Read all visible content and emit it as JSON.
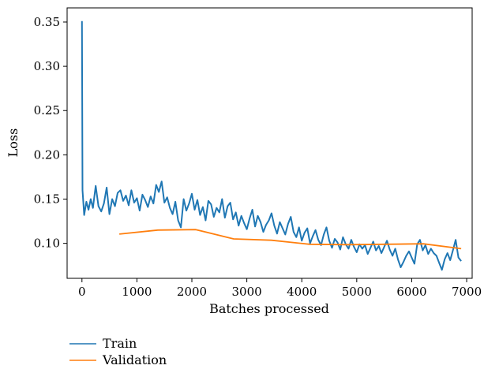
{
  "chart_data": {
    "type": "line",
    "title": "",
    "xlabel": "Batches processed",
    "ylabel": "Loss",
    "xlim": [
      -270,
      7100
    ],
    "ylim": [
      0.0605,
      0.366
    ],
    "x_ticks": [
      0,
      1000,
      2000,
      3000,
      4000,
      5000,
      6000,
      7000
    ],
    "y_ticks": [
      0.1,
      0.15,
      0.2,
      0.25,
      0.3,
      0.35
    ],
    "y_tick_labels": [
      "0.10",
      "0.15",
      "0.20",
      "0.25",
      "0.30",
      "0.35"
    ],
    "grid": false,
    "legend_position": "below-left",
    "series": [
      {
        "name": "Train",
        "color": "#1f77b4",
        "x": [
          0,
          10,
          40,
          80,
          120,
          160,
          200,
          250,
          300,
          350,
          400,
          450,
          500,
          550,
          600,
          650,
          700,
          750,
          800,
          850,
          900,
          950,
          1000,
          1050,
          1100,
          1150,
          1200,
          1250,
          1300,
          1350,
          1400,
          1450,
          1500,
          1550,
          1600,
          1650,
          1700,
          1750,
          1800,
          1850,
          1900,
          1950,
          2000,
          2050,
          2100,
          2150,
          2200,
          2250,
          2300,
          2350,
          2400,
          2450,
          2500,
          2550,
          2600,
          2650,
          2700,
          2750,
          2800,
          2850,
          2900,
          2950,
          3000,
          3050,
          3100,
          3150,
          3200,
          3250,
          3300,
          3350,
          3400,
          3450,
          3500,
          3550,
          3600,
          3650,
          3700,
          3750,
          3800,
          3850,
          3900,
          3950,
          4000,
          4050,
          4100,
          4150,
          4200,
          4250,
          4300,
          4350,
          4400,
          4450,
          4500,
          4550,
          4600,
          4650,
          4700,
          4750,
          4800,
          4850,
          4900,
          4950,
          5000,
          5050,
          5100,
          5150,
          5200,
          5250,
          5300,
          5350,
          5400,
          5450,
          5500,
          5550,
          5600,
          5650,
          5700,
          5750,
          5800,
          5850,
          5900,
          5950,
          6000,
          6050,
          6100,
          6150,
          6200,
          6250,
          6300,
          6350,
          6400,
          6450,
          6500,
          6550,
          6600,
          6650,
          6700,
          6750,
          6800,
          6850,
          6900
        ],
        "y": [
          0.351,
          0.16,
          0.132,
          0.147,
          0.138,
          0.15,
          0.14,
          0.165,
          0.142,
          0.136,
          0.145,
          0.163,
          0.133,
          0.15,
          0.142,
          0.157,
          0.16,
          0.148,
          0.154,
          0.143,
          0.16,
          0.146,
          0.151,
          0.137,
          0.155,
          0.149,
          0.141,
          0.153,
          0.145,
          0.166,
          0.158,
          0.17,
          0.146,
          0.152,
          0.14,
          0.133,
          0.147,
          0.126,
          0.118,
          0.15,
          0.137,
          0.145,
          0.156,
          0.138,
          0.149,
          0.132,
          0.141,
          0.126,
          0.148,
          0.144,
          0.13,
          0.14,
          0.135,
          0.15,
          0.129,
          0.142,
          0.146,
          0.127,
          0.135,
          0.12,
          0.131,
          0.123,
          0.116,
          0.128,
          0.138,
          0.119,
          0.131,
          0.124,
          0.113,
          0.121,
          0.126,
          0.134,
          0.12,
          0.111,
          0.124,
          0.117,
          0.11,
          0.122,
          0.13,
          0.113,
          0.107,
          0.118,
          0.103,
          0.112,
          0.117,
          0.1,
          0.108,
          0.115,
          0.104,
          0.098,
          0.11,
          0.118,
          0.103,
          0.095,
          0.105,
          0.101,
          0.093,
          0.107,
          0.099,
          0.094,
          0.104,
          0.096,
          0.09,
          0.099,
          0.094,
          0.098,
          0.088,
          0.095,
          0.102,
          0.092,
          0.097,
          0.089,
          0.096,
          0.103,
          0.093,
          0.086,
          0.094,
          0.082,
          0.073,
          0.079,
          0.086,
          0.091,
          0.084,
          0.077,
          0.099,
          0.104,
          0.092,
          0.098,
          0.088,
          0.094,
          0.089,
          0.086,
          0.078,
          0.07,
          0.082,
          0.089,
          0.081,
          0.092,
          0.104,
          0.084,
          0.08
        ]
      },
      {
        "name": "Validation",
        "color": "#ff7f0e",
        "x": [
          680,
          1380,
          2070,
          2760,
          3450,
          4140,
          4830,
          5520,
          6210,
          6900
        ],
        "y": [
          0.1105,
          0.115,
          0.1155,
          0.105,
          0.1035,
          0.099,
          0.0985,
          0.099,
          0.0995,
          0.094
        ]
      }
    ]
  }
}
